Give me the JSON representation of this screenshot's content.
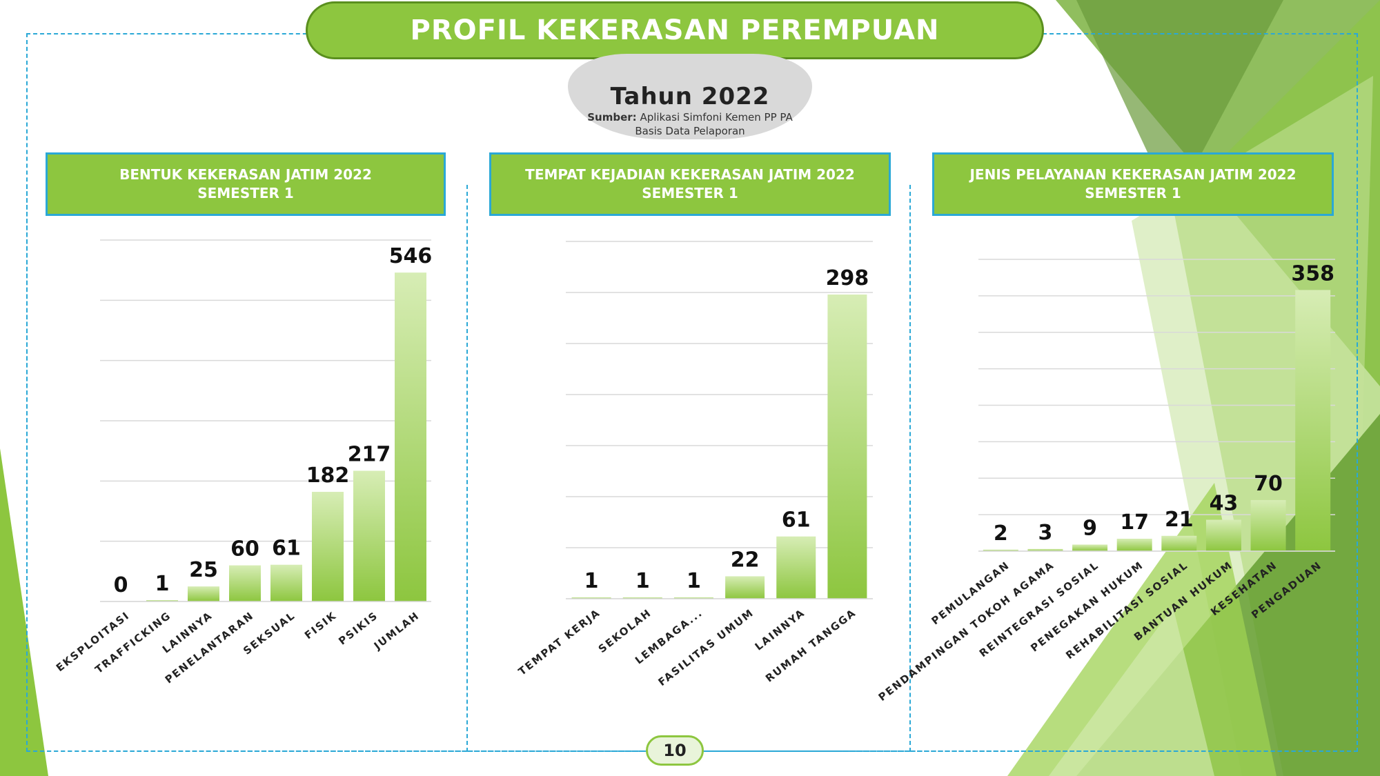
{
  "header": {
    "title": "PROFIL KEKERASAN PEREMPUAN",
    "year": "Tahun 2022",
    "source_label": "Sumber:",
    "source_text": "Aplikasi Simfoni Kemen PP PA",
    "source_line2": "Basis Data Pelaporan"
  },
  "colors": {
    "accent": "#8dc63f",
    "frame": "#2aa8d6",
    "bar_top": "#d7edb5",
    "bar_bottom": "#8dc63f"
  },
  "page_number": "10",
  "chart_data": [
    {
      "type": "bar",
      "title": "BENTUK KEKERASAN JATIM 2022",
      "subtitle": "SEMESTER 1",
      "categories": [
        "EKSPLOITASI",
        "TRAFFICKING",
        "LAINNYA",
        "PENELANTARAN",
        "SEKSUAL",
        "FISIK",
        "PSIKIS",
        "JUMLAH"
      ],
      "values": [
        0,
        1,
        25,
        60,
        61,
        182,
        217,
        546
      ],
      "value_labels": [
        "0",
        "1",
        "25",
        "60",
        "61",
        "182",
        "217",
        "546"
      ],
      "ylim": [
        0,
        600
      ],
      "grid": true
    },
    {
      "type": "bar",
      "title": "TEMPAT KEJADIAN KEKERASAN JATIM 2022",
      "subtitle": "SEMESTER 1",
      "categories": [
        "TEMPAT KERJA",
        "SEKOLAH",
        "LEMBAGA...",
        "FASILITAS UMUM",
        "LAINNYA",
        "RUMAH TANGGA"
      ],
      "values": [
        1,
        1,
        1,
        22,
        61,
        298
      ],
      "value_labels": [
        "1",
        "1",
        "1",
        "22",
        "61",
        "298"
      ],
      "ylim": [
        0,
        350
      ],
      "grid": true
    },
    {
      "type": "bar",
      "title": "JENIS PELAYANAN KEKERASAN JATIM 2022",
      "subtitle": "SEMESTER 1",
      "categories": [
        "PEMULANGAN",
        "PENDAMPINGAN TOKOH AGAMA",
        "REINTEGRASI SOSIAL",
        "PENEGAKAN HUKUM",
        "REHABILITASI SOSIAL",
        "BANTUAN HUKUM",
        "KESEHATAN",
        "PENGADUAN"
      ],
      "values": [
        2,
        3,
        9,
        17,
        21,
        43,
        70,
        358
      ],
      "value_labels": [
        "2",
        "3",
        "9",
        "17",
        "21",
        "43",
        "70",
        "358"
      ],
      "ylim": [
        0,
        400
      ],
      "grid": true
    }
  ]
}
